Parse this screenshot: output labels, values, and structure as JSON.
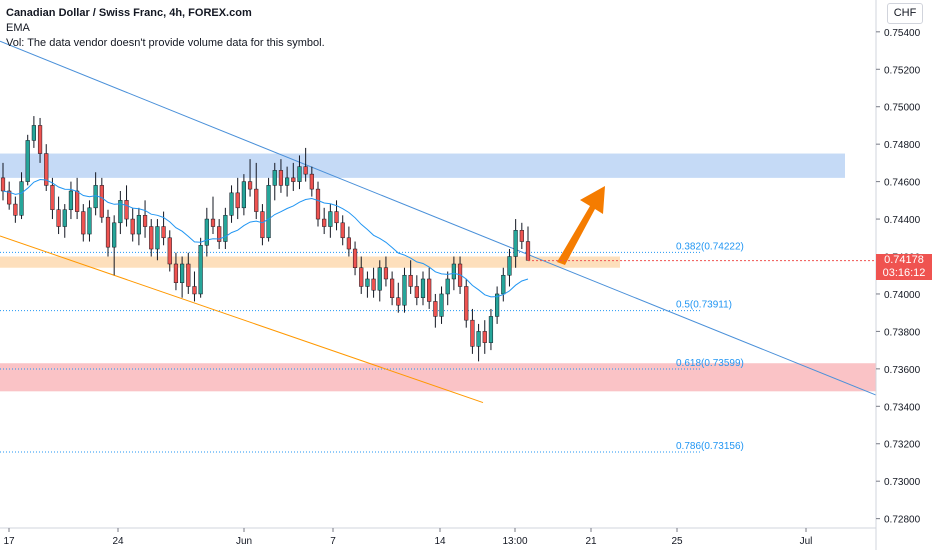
{
  "header": {
    "title": "Canadian Dollar / Swiss Franc, 4h, FOREX.com",
    "indicator": "EMA",
    "volume_note": "Vol: The data vendor doesn't provide volume data for this symbol."
  },
  "currency_button": "CHF",
  "current_price": {
    "value": "0.74178",
    "countdown": "03:16:12"
  },
  "colors": {
    "up": "#26a69a",
    "down": "#ef5350",
    "candle_dark": "#131722",
    "ema": "#2196f3",
    "trend_upper": "#4a90d9",
    "trend_lower": "#ff9800",
    "fib": "#2196f3",
    "arrow": "#f57c00",
    "price_tag": "#ef5350"
  },
  "chart_data": {
    "type": "candlestick",
    "title": "Canadian Dollar / Swiss Franc, 4h, FOREX.com",
    "ylim": [
      0.7275,
      0.7557
    ],
    "y_ticks": [
      "0.75400",
      "0.75200",
      "0.75000",
      "0.74800",
      "0.74600",
      "0.74400",
      "0.74200",
      "0.74000",
      "0.73800",
      "0.73600",
      "0.73400",
      "0.73200",
      "0.73000",
      "0.72800"
    ],
    "x_ticks": [
      "17",
      "24",
      "Jun",
      "7",
      "14",
      "13:00",
      "21",
      "25",
      "Jul"
    ],
    "ohlc_summary": {
      "range_high": 0.7495,
      "range_low": 0.7364,
      "last_close": 0.74178
    },
    "fib_levels": [
      {
        "label": "0.382(0.74222)",
        "price": 0.74222
      },
      {
        "label": "0.5(0.73911)",
        "price": 0.73911
      },
      {
        "label": "0.618(0.73599)",
        "price": 0.73599
      },
      {
        "label": "0.786(0.73156)",
        "price": 0.73156
      }
    ],
    "zones": [
      {
        "name": "resistance",
        "from": 0.7462,
        "to": 0.7475,
        "color": "#bbd3f5"
      },
      {
        "name": "support",
        "from": 0.7414,
        "to": 0.742,
        "color": "#fdd9b0"
      },
      {
        "name": "demand",
        "from": 0.7348,
        "to": 0.7363,
        "color": "#f9b9bc"
      }
    ],
    "lines": [
      {
        "name": "upper-trendline",
        "from": [
          0,
          0.7535
        ],
        "to": [
          1,
          0.7346
        ]
      },
      {
        "name": "lower-trendline",
        "from": [
          0,
          0.7431
        ],
        "to": [
          1,
          0.7342
        ]
      }
    ],
    "candles": [
      [
        0.7462,
        0.747,
        0.745,
        0.7455
      ],
      [
        0.7455,
        0.746,
        0.7445,
        0.7448
      ],
      [
        0.7448,
        0.7452,
        0.7438,
        0.7442
      ],
      [
        0.7442,
        0.7465,
        0.744,
        0.746
      ],
      [
        0.746,
        0.7485,
        0.7458,
        0.7482
      ],
      [
        0.7482,
        0.7495,
        0.7478,
        0.749
      ],
      [
        0.749,
        0.7494,
        0.747,
        0.7475
      ],
      [
        0.7475,
        0.748,
        0.7455,
        0.7458
      ],
      [
        0.7458,
        0.7462,
        0.744,
        0.7445
      ],
      [
        0.7445,
        0.7452,
        0.7432,
        0.7436
      ],
      [
        0.7436,
        0.7448,
        0.743,
        0.7445
      ],
      [
        0.7445,
        0.746,
        0.744,
        0.7455
      ],
      [
        0.7455,
        0.7462,
        0.744,
        0.7444
      ],
      [
        0.7444,
        0.7448,
        0.7428,
        0.7432
      ],
      [
        0.7432,
        0.745,
        0.7428,
        0.7446
      ],
      [
        0.7446,
        0.7465,
        0.7442,
        0.7458
      ],
      [
        0.7458,
        0.7462,
        0.7438,
        0.7441
      ],
      [
        0.7441,
        0.7445,
        0.742,
        0.7425
      ],
      [
        0.7425,
        0.7442,
        0.741,
        0.7438
      ],
      [
        0.7438,
        0.7455,
        0.7432,
        0.745
      ],
      [
        0.745,
        0.7458,
        0.7436,
        0.744
      ],
      [
        0.744,
        0.7446,
        0.7428,
        0.7432
      ],
      [
        0.7432,
        0.7446,
        0.7426,
        0.7442
      ],
      [
        0.7442,
        0.745,
        0.743,
        0.7436
      ],
      [
        0.7436,
        0.744,
        0.742,
        0.7424
      ],
      [
        0.7424,
        0.744,
        0.7418,
        0.7436
      ],
      [
        0.7436,
        0.7444,
        0.7426,
        0.743
      ],
      [
        0.743,
        0.7434,
        0.7412,
        0.7416
      ],
      [
        0.7416,
        0.7422,
        0.7402,
        0.7406
      ],
      [
        0.7406,
        0.742,
        0.7398,
        0.7416
      ],
      [
        0.7416,
        0.7422,
        0.74,
        0.7404
      ],
      [
        0.7404,
        0.7412,
        0.7396,
        0.74
      ],
      [
        0.74,
        0.743,
        0.7398,
        0.7426
      ],
      [
        0.7426,
        0.7446,
        0.742,
        0.744
      ],
      [
        0.744,
        0.7452,
        0.7432,
        0.7436
      ],
      [
        0.7436,
        0.744,
        0.7424,
        0.7428
      ],
      [
        0.7428,
        0.7446,
        0.7424,
        0.7442
      ],
      [
        0.7442,
        0.7458,
        0.7438,
        0.7454
      ],
      [
        0.7454,
        0.7462,
        0.744,
        0.7446
      ],
      [
        0.7446,
        0.7464,
        0.7442,
        0.746
      ],
      [
        0.746,
        0.7472,
        0.7452,
        0.7456
      ],
      [
        0.7456,
        0.747,
        0.744,
        0.7444
      ],
      [
        0.7444,
        0.7448,
        0.7426,
        0.743
      ],
      [
        0.743,
        0.7462,
        0.7428,
        0.7458
      ],
      [
        0.7458,
        0.747,
        0.745,
        0.7466
      ],
      [
        0.7466,
        0.7472,
        0.7454,
        0.7458
      ],
      [
        0.7458,
        0.7468,
        0.7452,
        0.7462
      ],
      [
        0.7462,
        0.747,
        0.7455,
        0.746
      ],
      [
        0.746,
        0.7474,
        0.7456,
        0.7468
      ],
      [
        0.7468,
        0.7478,
        0.746,
        0.7464
      ],
      [
        0.7464,
        0.7468,
        0.7452,
        0.7456
      ],
      [
        0.7456,
        0.746,
        0.7436,
        0.744
      ],
      [
        0.744,
        0.7446,
        0.7432,
        0.7436
      ],
      [
        0.7436,
        0.7448,
        0.743,
        0.7444
      ],
      [
        0.7444,
        0.745,
        0.7434,
        0.7438
      ],
      [
        0.7438,
        0.7442,
        0.7426,
        0.743
      ],
      [
        0.743,
        0.7436,
        0.742,
        0.7424
      ],
      [
        0.7424,
        0.7428,
        0.741,
        0.7414
      ],
      [
        0.7414,
        0.742,
        0.74,
        0.7404
      ],
      [
        0.7404,
        0.7412,
        0.7398,
        0.7408
      ],
      [
        0.7408,
        0.7414,
        0.7398,
        0.7402
      ],
      [
        0.7402,
        0.7418,
        0.7396,
        0.7414
      ],
      [
        0.7414,
        0.742,
        0.7404,
        0.7408
      ],
      [
        0.7408,
        0.7412,
        0.7394,
        0.7398
      ],
      [
        0.7398,
        0.7406,
        0.739,
        0.7394
      ],
      [
        0.7394,
        0.7414,
        0.739,
        0.741
      ],
      [
        0.741,
        0.7418,
        0.74,
        0.7404
      ],
      [
        0.7404,
        0.741,
        0.7394,
        0.7398
      ],
      [
        0.7398,
        0.7412,
        0.7394,
        0.7408
      ],
      [
        0.7408,
        0.7414,
        0.7392,
        0.7396
      ],
      [
        0.7396,
        0.74,
        0.7382,
        0.7388
      ],
      [
        0.7388,
        0.7404,
        0.7384,
        0.74
      ],
      [
        0.74,
        0.7412,
        0.7394,
        0.7408
      ],
      [
        0.7408,
        0.742,
        0.7402,
        0.7416
      ],
      [
        0.7416,
        0.742,
        0.74,
        0.7404
      ],
      [
        0.7404,
        0.7408,
        0.7382,
        0.7386
      ],
      [
        0.7386,
        0.7392,
        0.7368,
        0.7372
      ],
      [
        0.7372,
        0.7384,
        0.7364,
        0.738
      ],
      [
        0.738,
        0.7386,
        0.7368,
        0.7374
      ],
      [
        0.7374,
        0.7392,
        0.737,
        0.7388
      ],
      [
        0.7388,
        0.7404,
        0.7384,
        0.74
      ],
      [
        0.74,
        0.7414,
        0.7396,
        0.741
      ],
      [
        0.741,
        0.7424,
        0.7404,
        0.742
      ],
      [
        0.742,
        0.744,
        0.7414,
        0.7434
      ],
      [
        0.7434,
        0.7438,
        0.7424,
        0.7428
      ],
      [
        0.7428,
        0.7436,
        0.7418,
        0.7418
      ]
    ]
  }
}
